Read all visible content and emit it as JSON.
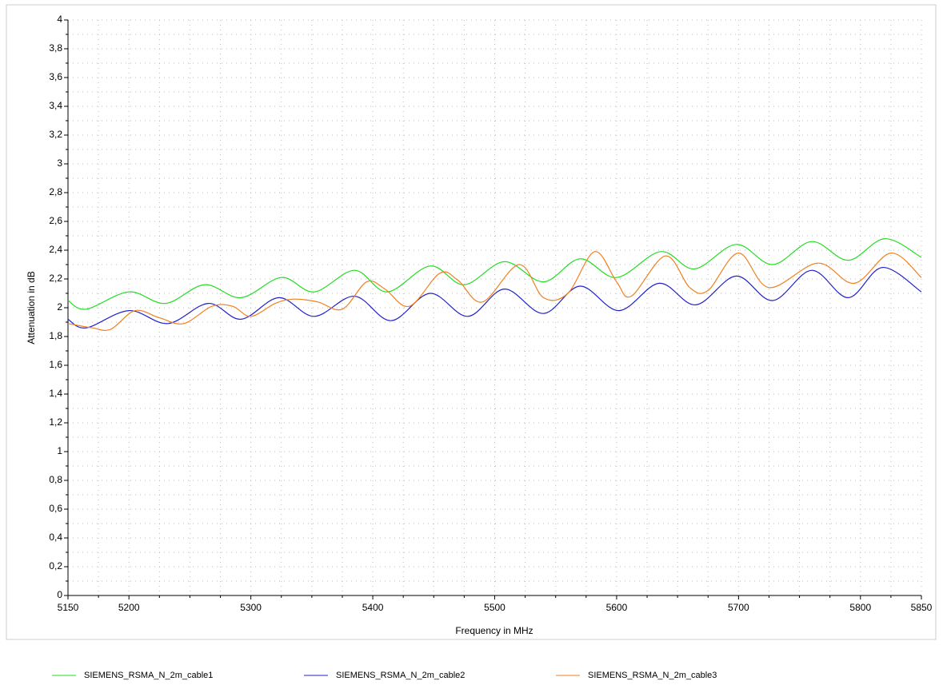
{
  "chart_data": {
    "type": "line",
    "x_label": "Frequency in MHz",
    "y_label": "Attenuation in dB",
    "xlim": [
      5150,
      5850
    ],
    "xticks": [
      5150,
      5200,
      5300,
      5400,
      5500,
      5600,
      5700,
      5800,
      5850
    ],
    "ylim": [
      0,
      4
    ],
    "yticks": [
      0,
      {
        "value": 0.2,
        "label": "0,2"
      },
      {
        "value": 0.4,
        "label": "0,4"
      },
      {
        "value": 0.6,
        "label": "0,6"
      },
      {
        "value": 0.8,
        "label": "0,8"
      },
      1,
      {
        "value": 1.2,
        "label": "1,2"
      },
      {
        "value": 1.4,
        "label": "1,4"
      },
      {
        "value": 1.6,
        "label": "1,6"
      },
      {
        "value": 1.8,
        "label": "1,8"
      },
      2,
      {
        "value": 2.2,
        "label": "2,2"
      },
      {
        "value": 2.4,
        "label": "2,4"
      },
      {
        "value": 2.6,
        "label": "2,6"
      },
      {
        "value": 2.8,
        "label": "2,8"
      },
      3,
      {
        "value": 3.2,
        "label": "3,2"
      },
      {
        "value": 3.4,
        "label": "3,4"
      },
      {
        "value": 3.6,
        "label": "3,6"
      },
      {
        "value": 3.8,
        "label": "3,8"
      },
      4
    ],
    "grid": true,
    "legend": "bottom",
    "series": [
      {
        "name": "SIEMENS_RSMA_N_2m_cable1",
        "color": "#22dd22",
        "x": [
          5150,
          5165,
          5200,
          5230,
          5262,
          5292,
          5325,
          5352,
          5385,
          5412,
          5447,
          5475,
          5508,
          5540,
          5570,
          5600,
          5636,
          5664,
          5698,
          5728,
          5760,
          5790,
          5820,
          5850
        ],
        "values": [
          2.05,
          1.99,
          2.11,
          2.03,
          2.16,
          2.07,
          2.21,
          2.11,
          2.26,
          2.11,
          2.29,
          2.16,
          2.32,
          2.18,
          2.34,
          2.21,
          2.39,
          2.27,
          2.44,
          2.3,
          2.46,
          2.33,
          2.48,
          2.35
        ]
      },
      {
        "name": "SIEMENS_RSMA_N_2m_cable2",
        "color": "#2222cc",
        "x": [
          5150,
          5165,
          5200,
          5232,
          5265,
          5292,
          5323,
          5352,
          5385,
          5415,
          5447,
          5478,
          5508,
          5540,
          5570,
          5602,
          5635,
          5665,
          5698,
          5728,
          5760,
          5790,
          5818,
          5850
        ],
        "values": [
          1.92,
          1.86,
          1.98,
          1.89,
          2.03,
          1.92,
          2.07,
          1.94,
          2.08,
          1.91,
          2.1,
          1.94,
          2.13,
          1.96,
          2.15,
          1.98,
          2.17,
          2.02,
          2.22,
          2.05,
          2.26,
          2.07,
          2.28,
          2.11
        ]
      },
      {
        "name": "SIEMENS_RSMA_N_2m_cable3",
        "color": "#f08020",
        "x": [
          5150,
          5170,
          5185,
          5205,
          5225,
          5245,
          5268,
          5285,
          5300,
          5320,
          5335,
          5355,
          5375,
          5395,
          5410,
          5430,
          5455,
          5470,
          5490,
          5520,
          5540,
          5560,
          5582,
          5600,
          5612,
          5640,
          5660,
          5675,
          5700,
          5725,
          5765,
          5795,
          5825,
          5850
        ],
        "values": [
          1.89,
          1.86,
          1.85,
          1.98,
          1.93,
          1.89,
          2.01,
          2.01,
          1.94,
          2.03,
          2.06,
          2.04,
          1.99,
          2.18,
          2.13,
          2.01,
          2.24,
          2.19,
          2.04,
          2.3,
          2.07,
          2.1,
          2.39,
          2.18,
          2.08,
          2.36,
          2.14,
          2.12,
          2.38,
          2.14,
          2.31,
          2.17,
          2.38,
          2.21
        ]
      }
    ]
  }
}
